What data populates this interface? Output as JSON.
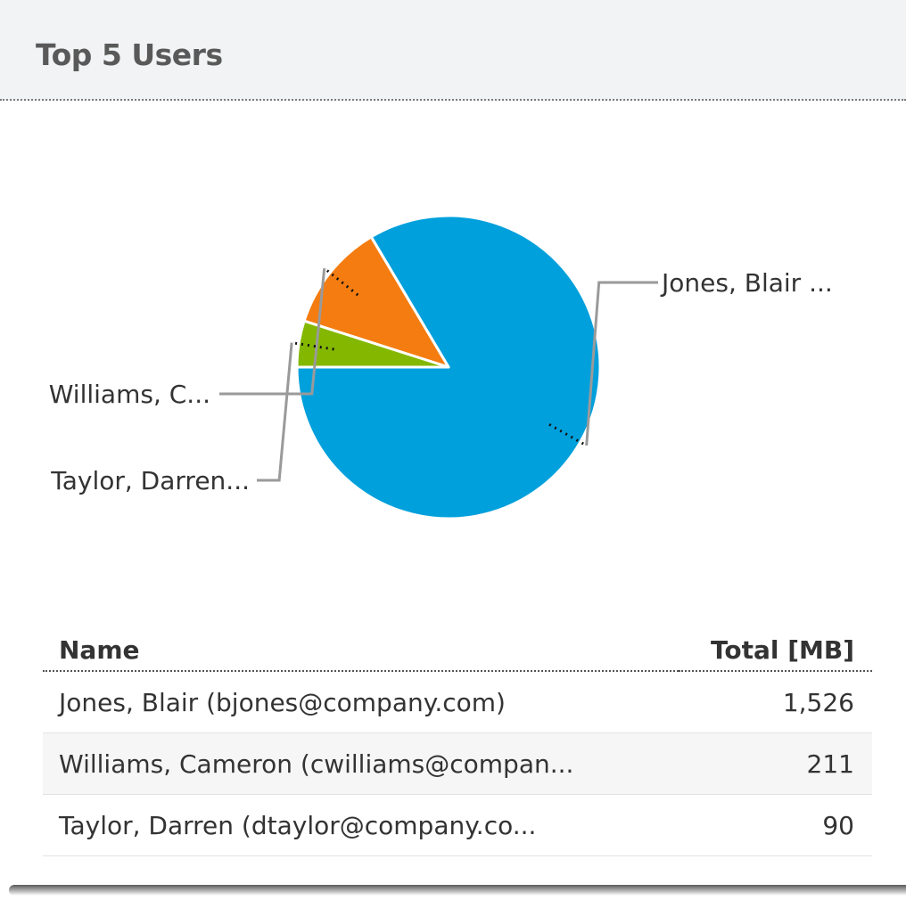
{
  "widget": {
    "title": "Top 5 Users"
  },
  "chart_data": {
    "type": "pie",
    "slices": [
      {
        "label": "Jones, Blair ...",
        "value": 1526,
        "color": "#00a0dc"
      },
      {
        "label": "Williams, C...",
        "value": 211,
        "color": "#f47c10"
      },
      {
        "label": "Taylor, Darren...",
        "value": 90,
        "color": "#84b800"
      }
    ]
  },
  "table": {
    "columns": [
      "Name",
      "Total [MB]"
    ],
    "rows": [
      [
        "Jones, Blair (bjones@company.com)",
        "1,526"
      ],
      [
        "Williams, Cameron (cwilliams@compan...",
        "211"
      ],
      [
        "Taylor, Darren (dtaylor@company.co...",
        "90"
      ]
    ]
  }
}
